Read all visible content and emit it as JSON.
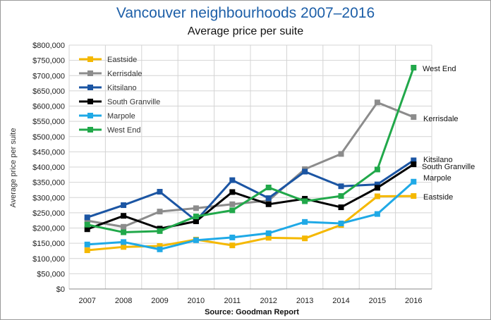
{
  "chart_data": {
    "type": "line",
    "title": "Vancouver neighbourhoods 2007–2016",
    "subtitle": "Average price per suite",
    "ylabel": "Average price per suite",
    "xlabel": "",
    "source": "Source: Goodman Report",
    "x": [
      "2007",
      "2008",
      "2009",
      "2010",
      "2011",
      "2012",
      "2013",
      "2014",
      "2015",
      "2016"
    ],
    "ylim": [
      0,
      800000
    ],
    "y_ticks": [
      {
        "value": 0,
        "label": "$0"
      },
      {
        "value": 50000,
        "label": "$50,000"
      },
      {
        "value": 100000,
        "label": "$100,000"
      },
      {
        "value": 150000,
        "label": "$150,000"
      },
      {
        "value": 200000,
        "label": "$200,000"
      },
      {
        "value": 250000,
        "label": "$250,000"
      },
      {
        "value": 300000,
        "label": "$300,000"
      },
      {
        "value": 350000,
        "label": "$350,000"
      },
      {
        "value": 400000,
        "label": "$400,000"
      },
      {
        "value": 450000,
        "label": "$450,000"
      },
      {
        "value": 500000,
        "label": "$500,000"
      },
      {
        "value": 550000,
        "label": "$550,000"
      },
      {
        "value": 600000,
        "label": "$600,000"
      },
      {
        "value": 650000,
        "label": "$650,000"
      },
      {
        "value": 700000,
        "label": "$700,000"
      },
      {
        "value": 750000,
        "label": "$750,000"
      },
      {
        "value": 800000,
        "label": "$800,000"
      }
    ],
    "grid": true,
    "legend_position": "top-left",
    "series": [
      {
        "name": "Eastside",
        "color": "#f5b800",
        "values": [
          127000,
          138000,
          141000,
          162000,
          143000,
          168000,
          166000,
          210000,
          304000,
          305000
        ],
        "end_label": "Eastside"
      },
      {
        "name": "Kerrisdale",
        "color": "#8c8c8c",
        "values": [
          224000,
          204000,
          254000,
          265000,
          278000,
          290000,
          393000,
          443000,
          612000,
          564000
        ],
        "end_label": "Kerrisdale"
      },
      {
        "name": "Kitsilano",
        "color": "#1b55a3",
        "values": [
          235000,
          275000,
          319000,
          224000,
          357000,
          298000,
          385000,
          337000,
          343000,
          422000
        ],
        "end_label": "Kitsilano"
      },
      {
        "name": "South Granville",
        "color": "#000000",
        "values": [
          196000,
          240000,
          198000,
          222000,
          318000,
          278000,
          296000,
          268000,
          332000,
          409000
        ],
        "end_label": "South Granville"
      },
      {
        "name": "Marpole",
        "color": "#1fa9e6",
        "values": [
          146000,
          154000,
          130000,
          160000,
          169000,
          183000,
          220000,
          215000,
          246000,
          352000
        ],
        "end_label": "Marpole"
      },
      {
        "name": "West End",
        "color": "#21a84a",
        "values": [
          211000,
          186000,
          190000,
          238000,
          258000,
          333000,
          288000,
          305000,
          392000,
          726000
        ],
        "end_label": "West End"
      }
    ]
  }
}
